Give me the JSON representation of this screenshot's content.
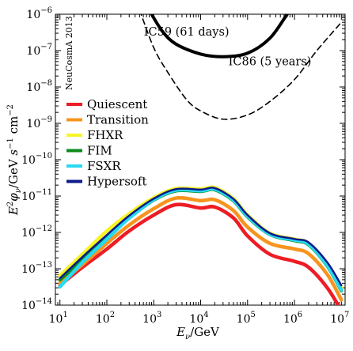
{
  "chart_data": {
    "type": "line",
    "xscale": "log",
    "yscale": "log",
    "xlim": [
      8,
      12000000
    ],
    "ylim": [
      1e-14,
      1e-06
    ],
    "xlabel": "E_ν/GeV",
    "ylabel": "E²φ_ν/GeV s⁻¹ cm⁻²",
    "x_ticks": [
      {
        "base": "10",
        "exp": "1"
      },
      {
        "base": "10",
        "exp": "2"
      },
      {
        "base": "10",
        "exp": "3"
      },
      {
        "base": "10",
        "exp": "4"
      },
      {
        "base": "10",
        "exp": "5"
      },
      {
        "base": "10",
        "exp": "6"
      },
      {
        "base": "10",
        "exp": "7"
      }
    ],
    "y_ticks": [
      {
        "base": "10",
        "exp": "−6"
      },
      {
        "base": "10",
        "exp": "−7"
      },
      {
        "base": "10",
        "exp": "−8"
      },
      {
        "base": "10",
        "exp": "−9"
      },
      {
        "base": "10",
        "exp": "−10"
      },
      {
        "base": "10",
        "exp": "−11"
      },
      {
        "base": "10",
        "exp": "−12"
      },
      {
        "base": "10",
        "exp": "−13"
      },
      {
        "base": "10",
        "exp": "−14"
      }
    ],
    "watermark": "NeuCosmA 2013",
    "legend_position": "middle-left",
    "series": [
      {
        "name": "Quiescent",
        "color": "#ee1c24",
        "width": 4.5,
        "points": [
          [
            10,
            3.5e-14
          ],
          [
            30,
            1.1e-13
          ],
          [
            100,
            3.5e-13
          ],
          [
            300,
            1.1e-12
          ],
          [
            1000,
            3e-12
          ],
          [
            3000,
            5.8e-12
          ],
          [
            10000,
            4.7e-12
          ],
          [
            20000,
            5e-12
          ],
          [
            50000,
            2.5e-12
          ],
          [
            100000,
            8e-13
          ],
          [
            300000,
            2.5e-13
          ],
          [
            1000000,
            1.6e-13
          ],
          [
            2000000,
            1.1e-13
          ],
          [
            5000000,
            3e-14
          ],
          [
            10000000,
            7e-15
          ]
        ]
      },
      {
        "name": "Transition",
        "color": "#f7941d",
        "width": 4.5,
        "points": [
          [
            10,
            4e-14
          ],
          [
            30,
            1.3e-13
          ],
          [
            100,
            5e-13
          ],
          [
            300,
            1.6e-12
          ],
          [
            1000,
            4.5e-12
          ],
          [
            3000,
            8.8e-12
          ],
          [
            10000,
            7.5e-12
          ],
          [
            20000,
            7.9e-12
          ],
          [
            50000,
            4e-12
          ],
          [
            100000,
            1.4e-12
          ],
          [
            300000,
            5e-13
          ],
          [
            1000000,
            3.5e-13
          ],
          [
            2000000,
            2.6e-13
          ],
          [
            5000000,
            7e-14
          ],
          [
            10000000,
            1.4e-14
          ]
        ]
      },
      {
        "name": "FHXR",
        "color": "#f7f429",
        "width": 4.5,
        "points": [
          [
            10,
            6.5e-14
          ],
          [
            30,
            2.5e-13
          ],
          [
            100,
            1.1e-12
          ],
          [
            300,
            3.3e-12
          ],
          [
            1000,
            9e-12
          ],
          [
            3000,
            1.6e-11
          ],
          [
            10000,
            1.55e-11
          ],
          [
            20000,
            1.7e-11
          ],
          [
            50000,
            8.5e-12
          ],
          [
            100000,
            3e-12
          ],
          [
            300000,
            9.5e-13
          ],
          [
            1000000,
            6.5e-13
          ],
          [
            2000000,
            5e-13
          ],
          [
            5000000,
            1.3e-13
          ],
          [
            10000000,
            3e-14
          ]
        ]
      },
      {
        "name": "FIM",
        "color": "#0a8a1c",
        "width": 4.5,
        "points": [
          [
            10,
            5e-14
          ],
          [
            30,
            1.8e-13
          ],
          [
            100,
            7e-13
          ],
          [
            300,
            2.5e-12
          ],
          [
            1000,
            7.8e-12
          ],
          [
            3000,
            1.4e-11
          ],
          [
            10000,
            1.35e-11
          ],
          [
            20000,
            1.5e-11
          ],
          [
            50000,
            7.5e-12
          ],
          [
            100000,
            2.7e-12
          ],
          [
            300000,
            8.8e-13
          ],
          [
            1000000,
            6e-13
          ],
          [
            2000000,
            4.6e-13
          ],
          [
            5000000,
            1.2e-13
          ],
          [
            10000000,
            2.5e-14
          ]
        ]
      },
      {
        "name": "FSXR",
        "color": "#27d9f2",
        "width": 4.5,
        "points": [
          [
            10,
            3.2e-14
          ],
          [
            30,
            1.5e-13
          ],
          [
            100,
            6.5e-13
          ],
          [
            300,
            2.5e-12
          ],
          [
            1000,
            8e-12
          ],
          [
            3000,
            1.45e-11
          ],
          [
            10000,
            1.4e-11
          ],
          [
            20000,
            1.55e-11
          ],
          [
            50000,
            7.8e-12
          ],
          [
            100000,
            2.8e-12
          ],
          [
            300000,
            9e-13
          ],
          [
            1000000,
            6.2e-13
          ],
          [
            2000000,
            4.8e-13
          ],
          [
            5000000,
            1.25e-13
          ],
          [
            10000000,
            2.6e-14
          ]
        ]
      },
      {
        "name": "Hypersoft",
        "color": "#0d1a8c",
        "width": 2.5,
        "points": [
          [
            10,
            5.5e-14
          ],
          [
            30,
            2.1e-13
          ],
          [
            100,
            8.5e-13
          ],
          [
            300,
            2.9e-12
          ],
          [
            1000,
            8.5e-12
          ],
          [
            3000,
            1.55e-11
          ],
          [
            10000,
            1.5e-11
          ],
          [
            20000,
            1.65e-11
          ],
          [
            50000,
            8.3e-12
          ],
          [
            100000,
            3e-12
          ],
          [
            300000,
            9.5e-13
          ],
          [
            1000000,
            6.6e-13
          ],
          [
            2000000,
            5.3e-13
          ],
          [
            5000000,
            1.5e-13
          ],
          [
            10000000,
            3.5e-14
          ]
        ]
      }
    ],
    "bounds": [
      {
        "label": "IC59 (61 days)",
        "style": "solid",
        "color": "#000000",
        "width": 4,
        "label_at": [
          5000,
          2.6e-07
        ],
        "points": [
          [
            800,
            1.3e-06
          ],
          [
            1500,
            3.5e-07
          ],
          [
            3000,
            1.5e-07
          ],
          [
            10000,
            8e-08
          ],
          [
            30000,
            6.8e-08
          ],
          [
            100000,
            8.5e-08
          ],
          [
            300000,
            2.2e-07
          ],
          [
            700000,
            1e-06
          ],
          [
            900000,
            1.4e-06
          ]
        ]
      },
      {
        "label": "IC86 (5 years)",
        "style": "dashed",
        "color": "#000000",
        "width": 1.6,
        "label_at": [
          300000,
          4e-08
        ],
        "points": [
          [
            500,
            1.3e-06
          ],
          [
            1000,
            1.2e-07
          ],
          [
            2000,
            2.5e-08
          ],
          [
            5000,
            4.5e-09
          ],
          [
            10000,
            2.2e-09
          ],
          [
            30000,
            1.3e-09
          ],
          [
            100000,
            1.7e-09
          ],
          [
            300000,
            4e-09
          ],
          [
            1000000,
            1.6e-08
          ],
          [
            3000000,
            1e-07
          ],
          [
            10000000,
            6e-07
          ]
        ]
      }
    ]
  }
}
